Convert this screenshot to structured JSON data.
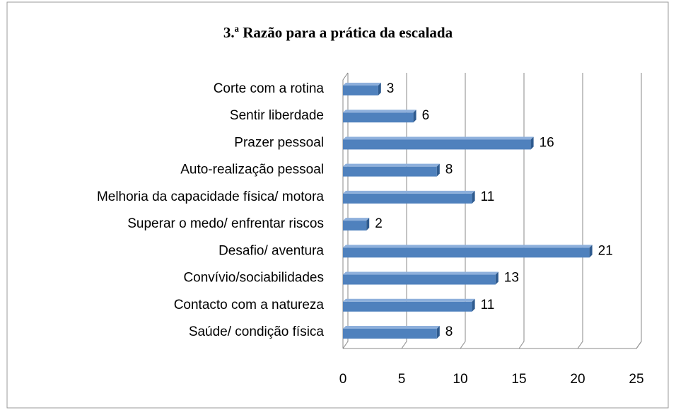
{
  "chart_data": {
    "type": "bar",
    "orientation": "horizontal",
    "title": "3.ª Razão para a prática da escalada",
    "categories": [
      "Corte com a rotina",
      "Sentir liberdade",
      "Prazer pessoal",
      "Auto-realização pessoal",
      "Melhoria da capacidade física/ motora",
      "Superar o medo/ enfrentar riscos",
      "Desafio/ aventura",
      "Convívio/sociabilidades",
      "Contacto com a natureza",
      "Saúde/ condição física"
    ],
    "values": [
      3,
      6,
      16,
      8,
      11,
      2,
      21,
      13,
      11,
      8
    ],
    "color": "#4f81bd",
    "xlim": [
      0,
      25
    ],
    "xticks": [
      0,
      5,
      10,
      15,
      20,
      25
    ],
    "grid": true
  }
}
